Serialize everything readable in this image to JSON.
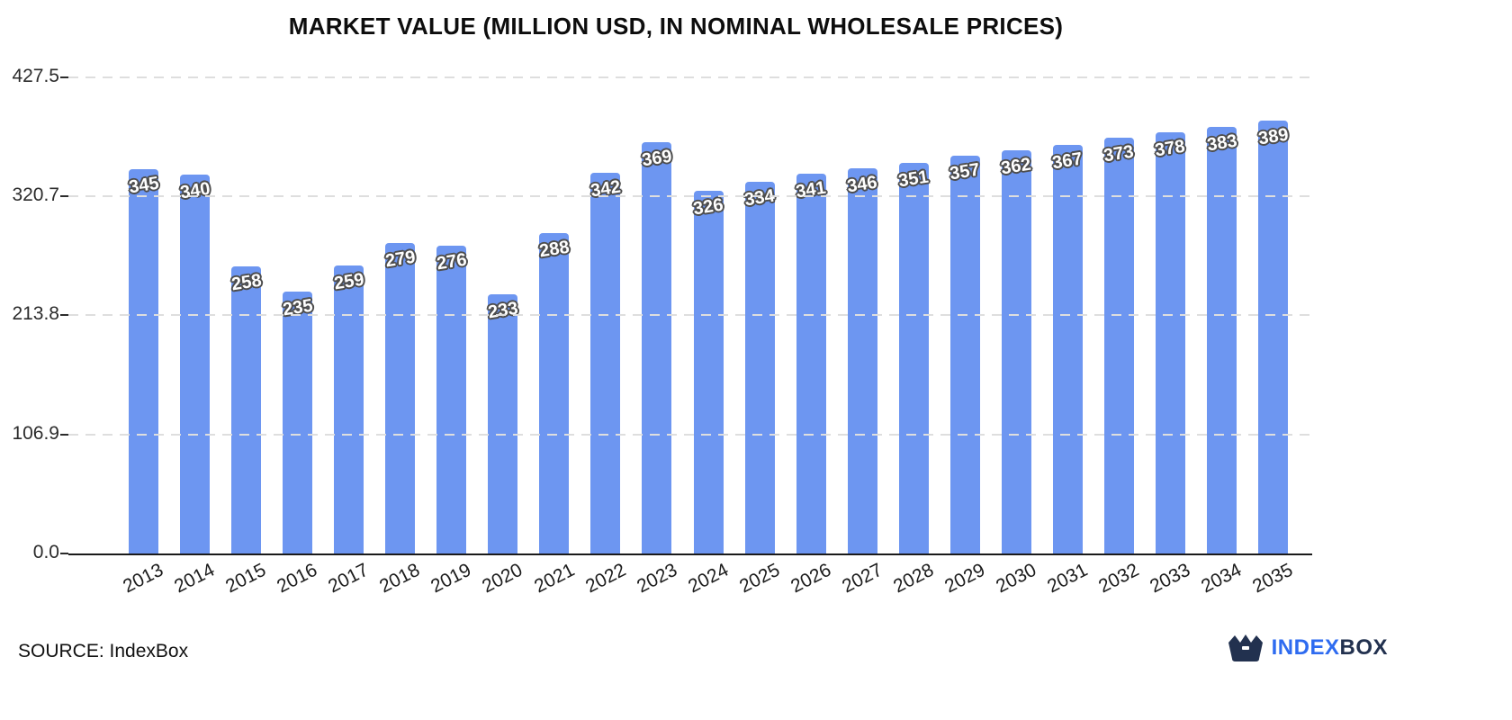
{
  "title": "MARKET VALUE (MILLION USD, IN NOMINAL WHOLESALE PRICES)",
  "source": "SOURCE: IndexBox",
  "logo": {
    "index": "INDEX",
    "box": "BOX",
    "icon": "indexbox-crown-icon"
  },
  "colors": {
    "bar": "#6d96f1",
    "grid": "#dedede",
    "axis": "#1a1a1a",
    "value_label_fill": "#ffffff",
    "value_label_outline": "#4d4d4d",
    "logo_blue": "#2e6bf0",
    "logo_dark": "#22314f"
  },
  "chart_data": {
    "type": "bar",
    "title": "MARKET VALUE (MILLION USD, IN NOMINAL WHOLESALE PRICES)",
    "categories": [
      "2013",
      "2014",
      "2015",
      "2016",
      "2017",
      "2018",
      "2019",
      "2020",
      "2021",
      "2022",
      "2023",
      "2024",
      "2025",
      "2026",
      "2027",
      "2028",
      "2029",
      "2030",
      "2031",
      "2032",
      "2033",
      "2034",
      "2035"
    ],
    "values": [
      345,
      340,
      258,
      235,
      259,
      279,
      276,
      233,
      288,
      342,
      369,
      326,
      334,
      341,
      346,
      351,
      357,
      362,
      367,
      373,
      378,
      383,
      389
    ],
    "xlabel": "",
    "ylabel": "",
    "ylim": [
      0,
      427.5
    ],
    "yticks": [
      0.0,
      106.9,
      213.8,
      320.7,
      427.5
    ],
    "ytick_labels": [
      "0.0",
      "106.9",
      "213.8",
      "320.7",
      "427.5"
    ],
    "grid": true,
    "grid_style": "dashed",
    "legend": false,
    "bar_labels_shown": true
  }
}
